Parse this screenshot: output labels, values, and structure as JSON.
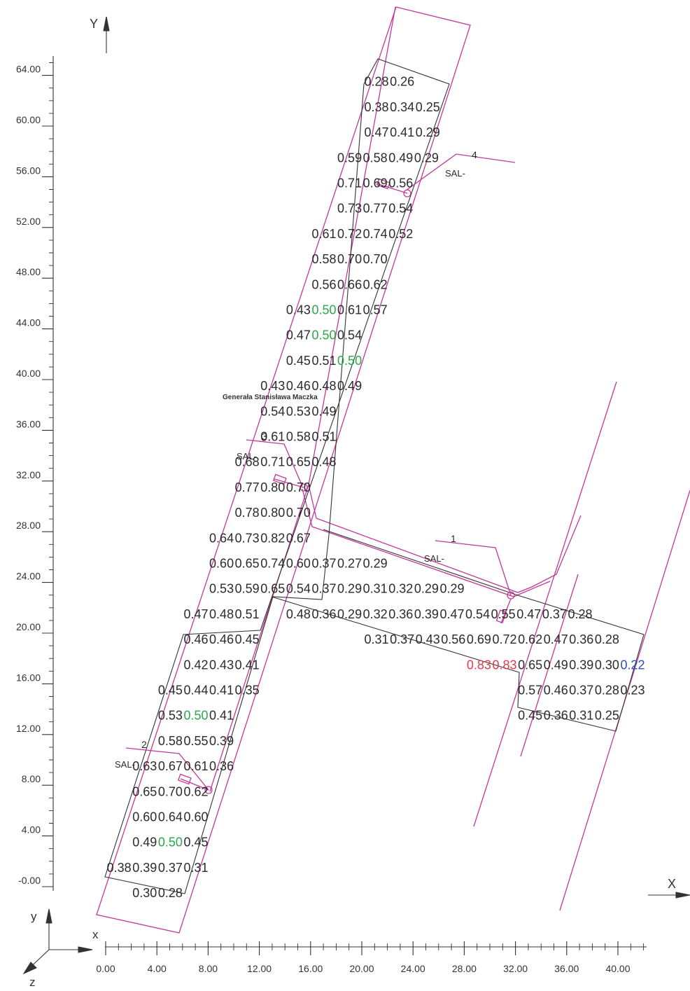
{
  "axes": {
    "y_title": "Y",
    "x_title": "X",
    "y_ticks": [
      "64.00",
      "60.00",
      "56.00",
      "52.00",
      "48.00",
      "44.00",
      "40.00",
      "36.00",
      "32.00",
      "28.00",
      "24.00",
      "20.00",
      "16.00",
      "12.00",
      "8.00",
      "4.00",
      "-0.00"
    ],
    "x_ticks": [
      "0.00",
      "4.00",
      "8.00",
      "12.00",
      "16.00",
      "20.00",
      "24.00",
      "28.00",
      "32.00",
      "36.00",
      "40.00"
    ]
  },
  "triad": {
    "y": "y",
    "x": "x",
    "z": "z"
  },
  "colors": {
    "outline": "#c2389a",
    "text": "#2b2b2b",
    "edge": "#333333",
    "green": "#2aa84a",
    "red": "#e53a4a",
    "blue": "#2d4fbf"
  },
  "markers": [
    {
      "num": "4",
      "tag": "SAL-"
    },
    {
      "num": "3",
      "tag": "SAL-"
    },
    {
      "num": "1",
      "tag": "SAL-"
    },
    {
      "num": "2",
      "tag": "SAL-"
    }
  ],
  "street_label": "Generała Stanisława Maczka",
  "value_rows": [
    {
      "y": 63.5,
      "x0": 20.3,
      "values": [
        [
          "0.28",
          "k"
        ],
        [
          "0.26",
          "k"
        ]
      ]
    },
    {
      "y": 61.5,
      "x0": 20.3,
      "values": [
        [
          "0.38",
          "k"
        ],
        [
          "0.34",
          "k"
        ],
        [
          "0.25",
          "k"
        ]
      ]
    },
    {
      "y": 59.5,
      "x0": 20.3,
      "values": [
        [
          "0.47",
          "k"
        ],
        [
          "0.41",
          "k"
        ],
        [
          "0.29",
          "k"
        ]
      ]
    },
    {
      "y": 57.5,
      "x0": 18.2,
      "values": [
        [
          "0.59",
          "k"
        ],
        [
          "0.58",
          "k"
        ],
        [
          "0.49",
          "k"
        ],
        [
          "0.29",
          "k"
        ]
      ]
    },
    {
      "y": 55.5,
      "x0": 18.2,
      "values": [
        [
          "0.71",
          "k"
        ],
        [
          "0.69",
          "k"
        ],
        [
          "0.56",
          "k"
        ]
      ]
    },
    {
      "y": 53.5,
      "x0": 18.2,
      "values": [
        [
          "0.73",
          "k"
        ],
        [
          "0.77",
          "k"
        ],
        [
          "0.54",
          "k"
        ]
      ]
    },
    {
      "y": 51.5,
      "x0": 16.2,
      "values": [
        [
          "0.61",
          "k"
        ],
        [
          "0.72",
          "k"
        ],
        [
          "0.74",
          "k"
        ],
        [
          "0.52",
          "k"
        ]
      ]
    },
    {
      "y": 49.5,
      "x0": 16.2,
      "values": [
        [
          "0.58",
          "k"
        ],
        [
          "0.70",
          "k"
        ],
        [
          "0.70",
          "k"
        ]
      ]
    },
    {
      "y": 47.5,
      "x0": 16.2,
      "values": [
        [
          "0.56",
          "k"
        ],
        [
          "0.66",
          "k"
        ],
        [
          "0.62",
          "k"
        ]
      ]
    },
    {
      "y": 45.5,
      "x0": 14.2,
      "values": [
        [
          "0.43",
          "k"
        ],
        [
          "0.50",
          "g"
        ],
        [
          "0.61",
          "k"
        ],
        [
          "0.57",
          "k"
        ]
      ]
    },
    {
      "y": 43.5,
      "x0": 14.2,
      "values": [
        [
          "0.47",
          "k"
        ],
        [
          "0.50",
          "g"
        ],
        [
          "0.54",
          "k"
        ]
      ]
    },
    {
      "y": 41.5,
      "x0": 14.2,
      "values": [
        [
          "0.45",
          "k"
        ],
        [
          "0.51",
          "k"
        ],
        [
          "0.50",
          "g"
        ]
      ]
    },
    {
      "y": 39.5,
      "x0": 12.2,
      "values": [
        [
          "0.43",
          "k"
        ],
        [
          "0.46",
          "k"
        ],
        [
          "0.48",
          "k"
        ],
        [
          "0.49",
          "k"
        ]
      ]
    },
    {
      "y": 37.5,
      "x0": 12.2,
      "values": [
        [
          "0.54",
          "k"
        ],
        [
          "0.53",
          "k"
        ],
        [
          "0.49",
          "k"
        ]
      ]
    },
    {
      "y": 35.5,
      "x0": 12.2,
      "values": [
        [
          "0.61",
          "k"
        ],
        [
          "0.58",
          "k"
        ],
        [
          "0.51",
          "k"
        ]
      ]
    },
    {
      "y": 33.5,
      "x0": 10.2,
      "values": [
        [
          "0.68",
          "k"
        ],
        [
          "0.71",
          "k"
        ],
        [
          "0.65",
          "k"
        ],
        [
          "0.48",
          "k"
        ]
      ]
    },
    {
      "y": 31.5,
      "x0": 10.2,
      "values": [
        [
          "0.77",
          "k"
        ],
        [
          "0.80",
          "k"
        ],
        [
          "0.70",
          "k"
        ]
      ]
    },
    {
      "y": 29.5,
      "x0": 10.2,
      "values": [
        [
          "0.78",
          "k"
        ],
        [
          "0.80",
          "k"
        ],
        [
          "0.70",
          "k"
        ]
      ]
    },
    {
      "y": 27.5,
      "x0": 8.2,
      "values": [
        [
          "0.64",
          "k"
        ],
        [
          "0.73",
          "k"
        ],
        [
          "0.82",
          "k"
        ],
        [
          "0.67",
          "k"
        ]
      ]
    },
    {
      "y": 25.5,
      "x0": 8.2,
      "values": [
        [
          "0.60",
          "k"
        ],
        [
          "0.65",
          "k"
        ],
        [
          "0.74",
          "k"
        ],
        [
          "0.60",
          "k"
        ],
        [
          "0.37",
          "k"
        ],
        [
          "0.27",
          "k"
        ],
        [
          "0.29",
          "k"
        ]
      ]
    },
    {
      "y": 23.5,
      "x0": 8.2,
      "values": [
        [
          "0.53",
          "k"
        ],
        [
          "0.59",
          "k"
        ],
        [
          "0.65",
          "k"
        ],
        [
          "0.54",
          "k"
        ],
        [
          "0.37",
          "k"
        ],
        [
          "0.29",
          "k"
        ],
        [
          "0.31",
          "k"
        ],
        [
          "0.32",
          "k"
        ],
        [
          "0.29",
          "k"
        ],
        [
          "0.29",
          "k"
        ]
      ]
    },
    {
      "y": 21.5,
      "x0": 6.2,
      "values": [
        [
          "0.47",
          "k"
        ],
        [
          "0.48",
          "k"
        ],
        [
          "0.51",
          "k"
        ],
        [
          "",
          ""
        ],
        [
          "0.48",
          "k"
        ],
        [
          "0.36",
          "k"
        ],
        [
          "0.29",
          "k"
        ],
        [
          "0.32",
          "k"
        ],
        [
          "0.36",
          "k"
        ],
        [
          "0.39",
          "k"
        ],
        [
          "0.47",
          "k"
        ],
        [
          "0.54",
          "k"
        ],
        [
          "0.55",
          "k"
        ],
        [
          "0.47",
          "k"
        ],
        [
          "0.37",
          "k"
        ],
        [
          "0.28",
          "k"
        ]
      ]
    },
    {
      "y": 19.5,
      "x0": 6.2,
      "values": [
        [
          "0.46",
          "k"
        ],
        [
          "0.46",
          "k"
        ],
        [
          "0.45",
          "k"
        ]
      ]
    },
    {
      "y": 19.5,
      "x0": 20.3,
      "values": [
        [
          "0.31",
          "k"
        ],
        [
          "0.37",
          "k"
        ],
        [
          "0.43",
          "k"
        ],
        [
          "0.56",
          "k"
        ],
        [
          "0.69",
          "k"
        ],
        [
          "0.72",
          "k"
        ],
        [
          "0.62",
          "k"
        ],
        [
          "0.47",
          "k"
        ],
        [
          "0.36",
          "k"
        ],
        [
          "0.28",
          "k"
        ]
      ]
    },
    {
      "y": 17.5,
      "x0": 6.2,
      "values": [
        [
          "0.42",
          "k"
        ],
        [
          "0.43",
          "k"
        ],
        [
          "0.41",
          "k"
        ]
      ]
    },
    {
      "y": 17.5,
      "x0": 28.3,
      "values": [
        [
          "0.83",
          "r"
        ],
        [
          "0.83",
          "r"
        ],
        [
          "0.65",
          "k"
        ],
        [
          "0.49",
          "k"
        ],
        [
          "0.39",
          "k"
        ],
        [
          "0.30",
          "k"
        ],
        [
          "0.22",
          "b"
        ]
      ]
    },
    {
      "y": 15.5,
      "x0": 4.2,
      "values": [
        [
          "0.45",
          "k"
        ],
        [
          "0.44",
          "k"
        ],
        [
          "0.41",
          "k"
        ],
        [
          "0.35",
          "k"
        ]
      ]
    },
    {
      "y": 15.5,
      "x0": 32.3,
      "values": [
        [
          "0.57",
          "k"
        ],
        [
          "0.46",
          "k"
        ],
        [
          "0.37",
          "k"
        ],
        [
          "0.28",
          "k"
        ],
        [
          "0.23",
          "k"
        ]
      ]
    },
    {
      "y": 13.5,
      "x0": 4.2,
      "values": [
        [
          "0.53",
          "k"
        ],
        [
          "0.50",
          "g"
        ],
        [
          "0.41",
          "k"
        ]
      ]
    },
    {
      "y": 13.5,
      "x0": 32.3,
      "values": [
        [
          "0.45",
          "k"
        ],
        [
          "0.36",
          "k"
        ],
        [
          "0.31",
          "k"
        ],
        [
          "0.25",
          "k"
        ]
      ]
    },
    {
      "y": 11.5,
      "x0": 4.2,
      "values": [
        [
          "0.58",
          "k"
        ],
        [
          "0.55",
          "k"
        ],
        [
          "0.39",
          "k"
        ]
      ]
    },
    {
      "y": 9.5,
      "x0": 2.2,
      "values": [
        [
          "0.63",
          "k"
        ],
        [
          "0.67",
          "k"
        ],
        [
          "0.61",
          "k"
        ],
        [
          "0.36",
          "k"
        ]
      ]
    },
    {
      "y": 7.5,
      "x0": 2.2,
      "values": [
        [
          "0.65",
          "k"
        ],
        [
          "0.70",
          "k"
        ],
        [
          "0.62",
          "k"
        ]
      ]
    },
    {
      "y": 5.5,
      "x0": 2.2,
      "values": [
        [
          "0.60",
          "k"
        ],
        [
          "0.64",
          "k"
        ],
        [
          "0.60",
          "k"
        ]
      ]
    },
    {
      "y": 3.5,
      "x0": 2.2,
      "values": [
        [
          "0.49",
          "k"
        ],
        [
          "0.50",
          "g"
        ],
        [
          "0.45",
          "k"
        ]
      ]
    },
    {
      "y": 1.5,
      "x0": 0.2,
      "values": [
        [
          "0.38",
          "k"
        ],
        [
          "0.39",
          "k"
        ],
        [
          "0.37",
          "k"
        ],
        [
          "0.31",
          "k"
        ]
      ]
    },
    {
      "y": -0.5,
      "x0": 2.2,
      "values": [
        [
          "0.30",
          "k"
        ],
        [
          "0.28",
          "k"
        ]
      ]
    }
  ]
}
